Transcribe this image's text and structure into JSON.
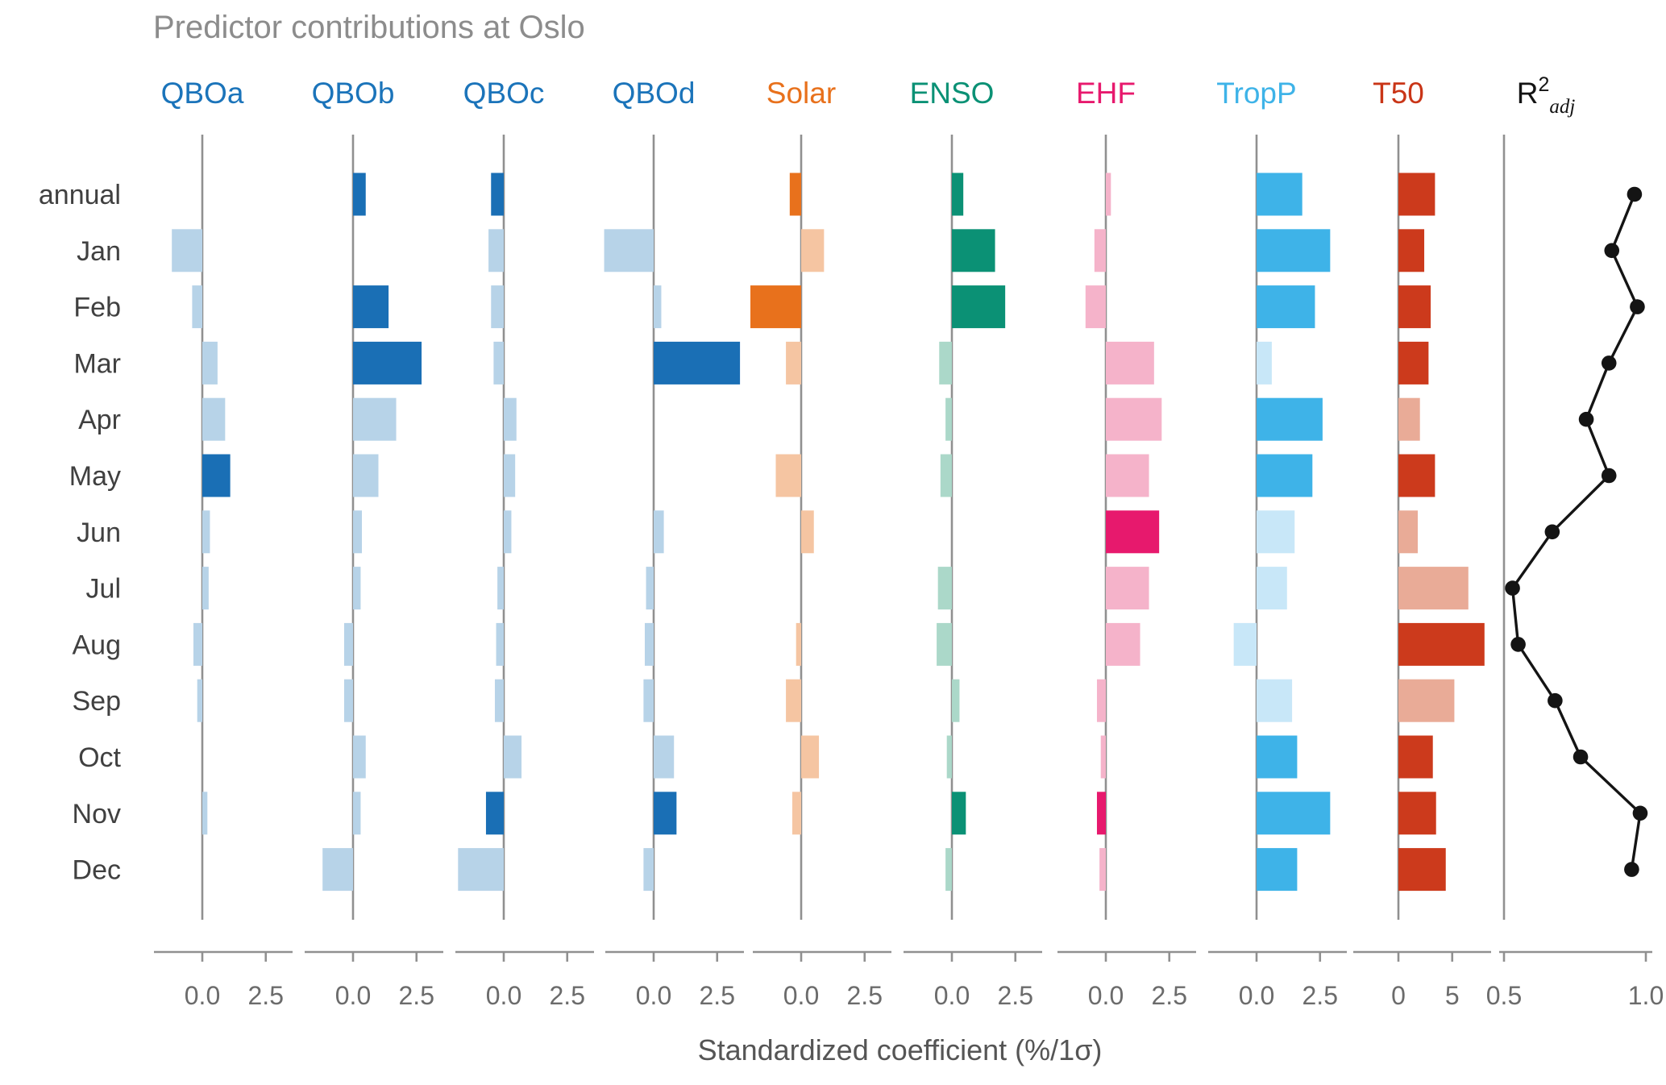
{
  "chart_data": {
    "type": "bar",
    "layout": "small-multiple horizontal bar panels with one line panel",
    "title": "Predictor contributions at Oslo",
    "xlabel": "Standardized coefficient (%/1σ)",
    "rows": [
      "annual",
      "Jan",
      "Feb",
      "Mar",
      "Apr",
      "May",
      "Jun",
      "Jul",
      "Aug",
      "Sep",
      "Oct",
      "Nov",
      "Dec"
    ],
    "grid": false,
    "panels": [
      {
        "name": "QBOa",
        "kind": "bar",
        "header_color": "#1b74ba",
        "color_strong": "#1a6fb5",
        "color_light": "#b7d3e8",
        "xlim": [
          -2.0,
          3.6
        ],
        "ticks": [
          {
            "value": 0,
            "label": "0.0"
          },
          {
            "value": 2.5,
            "label": "2.5"
          }
        ],
        "values": [
          0,
          -1.2,
          -0.4,
          0.6,
          0.9,
          1.1,
          0.3,
          0.25,
          -0.35,
          -0.2,
          0,
          0.2,
          0
        ],
        "strong": [
          0,
          0,
          0,
          0,
          0,
          1,
          0,
          0,
          0,
          0,
          0,
          0,
          0
        ]
      },
      {
        "name": "QBOb",
        "kind": "bar",
        "header_color": "#1b74ba",
        "color_strong": "#1a6fb5",
        "color_light": "#b7d3e8",
        "xlim": [
          -2.0,
          3.6
        ],
        "ticks": [
          {
            "value": 0,
            "label": "0.0"
          },
          {
            "value": 2.5,
            "label": "2.5"
          }
        ],
        "values": [
          0.5,
          0,
          1.4,
          2.7,
          1.7,
          1.0,
          0.35,
          0.3,
          -0.35,
          -0.35,
          0.5,
          0.3,
          -1.2
        ],
        "strong": [
          1,
          0,
          1,
          1,
          0,
          0,
          0,
          0,
          0,
          0,
          0,
          0,
          0
        ]
      },
      {
        "name": "QBOc",
        "kind": "bar",
        "header_color": "#1b74ba",
        "color_strong": "#1a6fb5",
        "color_light": "#b7d3e8",
        "xlim": [
          -2.0,
          3.6
        ],
        "ticks": [
          {
            "value": 0,
            "label": "0.0"
          },
          {
            "value": 2.5,
            "label": "2.5"
          }
        ],
        "values": [
          -0.5,
          -0.6,
          -0.5,
          -0.4,
          0.5,
          0.45,
          0.3,
          -0.25,
          -0.3,
          -0.35,
          0.7,
          -0.7,
          -1.8
        ],
        "strong": [
          1,
          0,
          0,
          0,
          0,
          0,
          0,
          0,
          0,
          0,
          0,
          1,
          0
        ]
      },
      {
        "name": "QBOd",
        "kind": "bar",
        "header_color": "#1b74ba",
        "color_strong": "#1a6fb5",
        "color_light": "#b7d3e8",
        "xlim": [
          -2.0,
          3.6
        ],
        "ticks": [
          {
            "value": 0,
            "label": "0.0"
          },
          {
            "value": 2.5,
            "label": "2.5"
          }
        ],
        "values": [
          0,
          -1.95,
          0.3,
          3.4,
          0,
          0,
          0.4,
          -0.3,
          -0.35,
          -0.4,
          0.8,
          0.9,
          -0.4
        ],
        "strong": [
          0,
          0,
          0,
          1,
          0,
          0,
          0,
          0,
          0,
          0,
          0,
          1,
          0
        ]
      },
      {
        "name": "Solar",
        "kind": "bar",
        "header_color": "#e8711c",
        "color_strong": "#e8711c",
        "color_light": "#f5c5a2",
        "xlim": [
          -2.0,
          3.6
        ],
        "ticks": [
          {
            "value": 0,
            "label": "0.0"
          },
          {
            "value": 2.5,
            "label": "2.5"
          }
        ],
        "values": [
          -0.45,
          0.9,
          -2.0,
          -0.6,
          0,
          -1.0,
          0.5,
          0,
          -0.2,
          -0.6,
          0.7,
          -0.35,
          0
        ],
        "strong": [
          1,
          0,
          1,
          0,
          0,
          0,
          0,
          0,
          0,
          0,
          0,
          0,
          0
        ]
      },
      {
        "name": "ENSO",
        "kind": "bar",
        "header_color": "#0b9175",
        "color_strong": "#0b9175",
        "color_light": "#abd8c9",
        "xlim": [
          -2.0,
          3.6
        ],
        "ticks": [
          {
            "value": 0,
            "label": "0.0"
          },
          {
            "value": 2.5,
            "label": "2.5"
          }
        ],
        "values": [
          0.45,
          1.7,
          2.1,
          -0.5,
          -0.25,
          -0.45,
          0,
          -0.55,
          -0.6,
          0.3,
          -0.2,
          0.55,
          -0.25
        ],
        "strong": [
          1,
          1,
          1,
          0,
          0,
          0,
          0,
          0,
          0,
          0,
          0,
          1,
          0
        ]
      },
      {
        "name": "EHF",
        "kind": "bar",
        "header_color": "#e7196d",
        "color_strong": "#e7196d",
        "color_light": "#f5b3ca",
        "xlim": [
          -2.0,
          3.6
        ],
        "ticks": [
          {
            "value": 0,
            "label": "0.0"
          },
          {
            "value": 2.5,
            "label": "2.5"
          }
        ],
        "values": [
          0.2,
          -0.45,
          -0.8,
          1.9,
          2.2,
          1.7,
          2.1,
          1.7,
          1.35,
          -0.35,
          -0.2,
          -0.35,
          -0.25
        ],
        "strong": [
          0,
          0,
          0,
          0,
          0,
          0,
          1,
          0,
          0,
          0,
          0,
          1,
          0
        ]
      },
      {
        "name": "TropP",
        "kind": "bar",
        "header_color": "#3eb3e8",
        "color_strong": "#3eb3e8",
        "color_light": "#c8e7f8",
        "xlim": [
          -2.0,
          3.6
        ],
        "ticks": [
          {
            "value": 0,
            "label": "0.0"
          },
          {
            "value": 2.5,
            "label": "2.5"
          }
        ],
        "values": [
          1.8,
          2.9,
          2.3,
          0.6,
          2.6,
          2.2,
          1.5,
          1.2,
          -0.9,
          1.4,
          1.6,
          2.9,
          1.6
        ],
        "strong": [
          1,
          1,
          1,
          0,
          1,
          1,
          0,
          0,
          0,
          0,
          1,
          1,
          1
        ]
      },
      {
        "name": "T50",
        "kind": "bar",
        "header_color": "#c93517",
        "color_strong": "#cc3a1c",
        "color_light": "#e9ab97",
        "xlim": [
          -4.2,
          8.6
        ],
        "ticks": [
          {
            "value": 0,
            "label": "0"
          },
          {
            "value": 5,
            "label": "5"
          }
        ],
        "values": [
          3.4,
          2.4,
          3.0,
          2.8,
          2.0,
          3.4,
          1.8,
          6.5,
          8.0,
          5.2,
          3.2,
          3.5,
          4.4
        ],
        "strong": [
          1,
          1,
          1,
          1,
          0,
          1,
          0,
          0,
          1,
          0,
          1,
          1,
          1
        ]
      },
      {
        "name": "R2adj",
        "kind": "line",
        "header_color": "#141414",
        "line_color": "#141414",
        "header_parts": {
          "base": "R",
          "sup": "2",
          "sub": "adj"
        },
        "axis_range": [
          0.5,
          1.0
        ],
        "ticks": [
          {
            "value": 0.5,
            "label": "0.5"
          },
          {
            "value": 1.0,
            "label": "1.0"
          }
        ],
        "values": [
          0.96,
          0.88,
          0.97,
          0.87,
          0.79,
          0.87,
          0.67,
          0.53,
          0.55,
          0.68,
          0.77,
          0.98,
          0.95
        ]
      }
    ]
  }
}
